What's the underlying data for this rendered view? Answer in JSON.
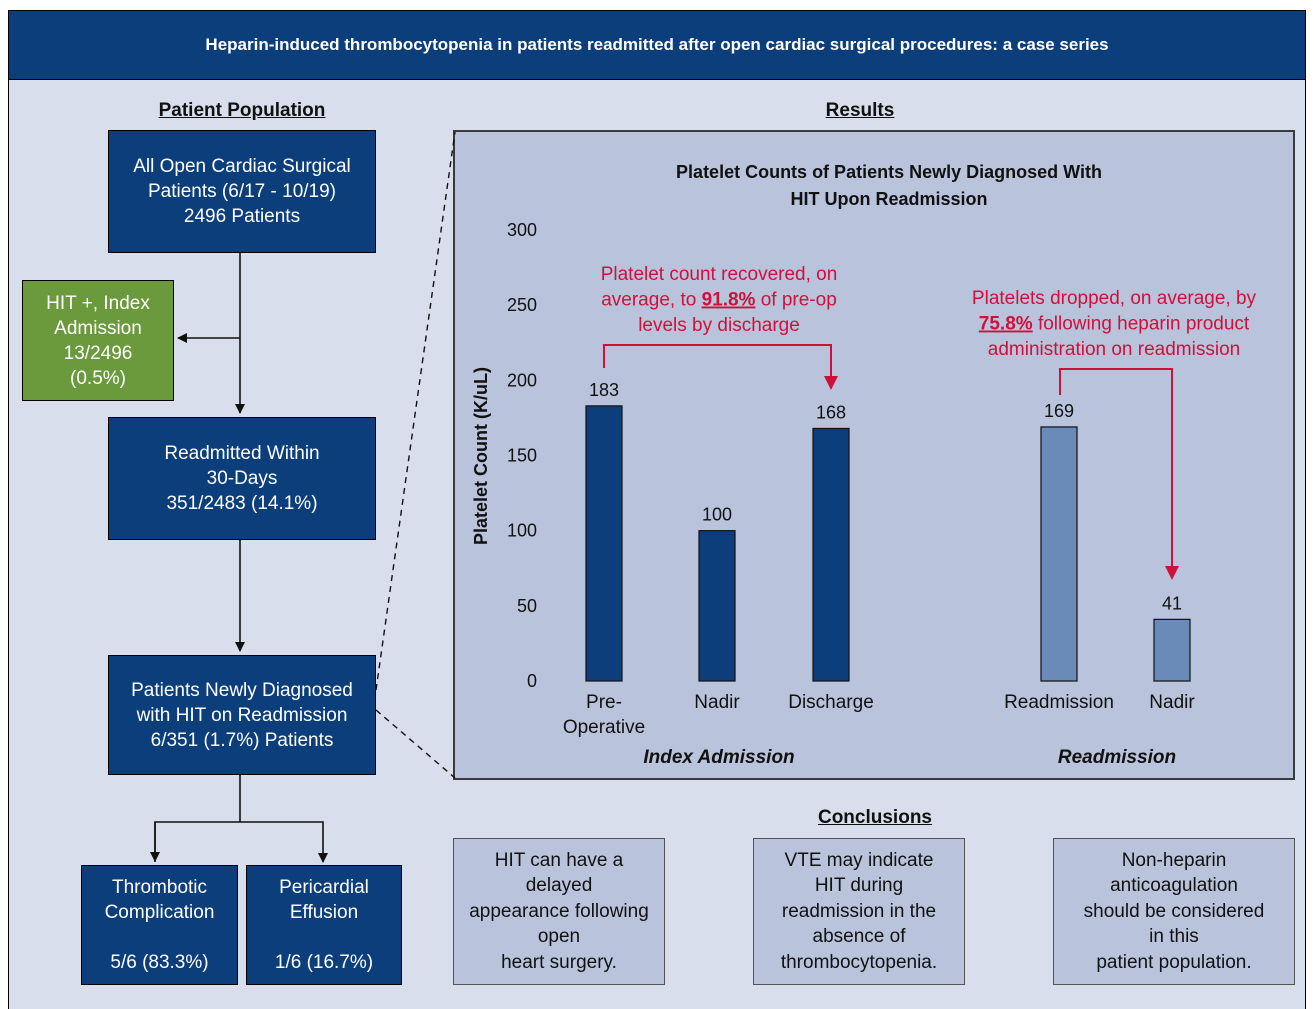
{
  "header": {
    "title": "Heparin-induced thrombocytopenia in patients readmitted after open cardiac surgical procedures: a case series"
  },
  "population": {
    "title": "Patient Population",
    "all_patients": [
      "All Open Cardiac Surgical",
      "Patients (6/17 - 10/19)",
      "2496 Patients"
    ],
    "hit_index": [
      "HIT +, Index",
      "Admission",
      "13/2496",
      "(0.5%)"
    ],
    "readmitted": [
      "Readmitted Within",
      "30-Days",
      "351/2483 (14.1%)"
    ],
    "newly_diagnosed": [
      "Patients Newly Diagnosed",
      "with HIT on Readmission",
      "6/351 (1.7%) Patients"
    ],
    "thrombotic": [
      "Thrombotic",
      "Complication",
      "",
      "5/6 (83.3%)"
    ],
    "pericardial": [
      "Pericardial",
      "Effusion",
      "",
      "1/6 (16.7%)"
    ]
  },
  "results": {
    "title": "Results"
  },
  "chart_data": {
    "type": "bar",
    "title": [
      "Platelet Counts of Patients Newly Diagnosed With",
      "HIT Upon Readmission"
    ],
    "ylabel": "Platelet Count (K/uL)",
    "ylim": [
      0,
      300
    ],
    "yticks": [
      0,
      50,
      100,
      150,
      200,
      250,
      300
    ],
    "groups": [
      "Index Admission",
      "Readmission"
    ],
    "bars": [
      {
        "label": [
          "Pre-",
          "Operative"
        ],
        "value": 183,
        "group": "Index Admission",
        "color": "#0b3e7a"
      },
      {
        "label": [
          "Nadir"
        ],
        "value": 100,
        "group": "Index Admission",
        "color": "#0b3e7a"
      },
      {
        "label": [
          "Discharge"
        ],
        "value": 168,
        "group": "Index Admission",
        "color": "#0b3e7a"
      },
      {
        "label": [
          "Readmission"
        ],
        "value": 169,
        "group": "Readmission",
        "color": "#6a8bb8"
      },
      {
        "label": [
          "Nadir"
        ],
        "value": 41,
        "group": "Readmission",
        "color": "#6a8bb8"
      }
    ],
    "annotations": [
      {
        "lines": [
          "Platelet count recovered, on",
          "average, to |91.8%| of pre-op",
          "levels by discharge"
        ]
      },
      {
        "lines": [
          "Platelets dropped, on average, by",
          "|75.8%| following heparin product",
          "administration on readmission"
        ]
      }
    ],
    "annotation_color": "#d0103a"
  },
  "conclusions": {
    "title": "Conclusions",
    "items": [
      [
        "HIT can have a",
        "delayed",
        "appearance following",
        "open",
        "heart surgery."
      ],
      [
        "VTE may indicate",
        "HIT during",
        "readmission in the",
        "absence of",
        "thrombocytopenia."
      ],
      [
        "Non-heparin",
        "anticoagulation",
        "should be considered",
        "in this",
        "patient population."
      ]
    ]
  }
}
